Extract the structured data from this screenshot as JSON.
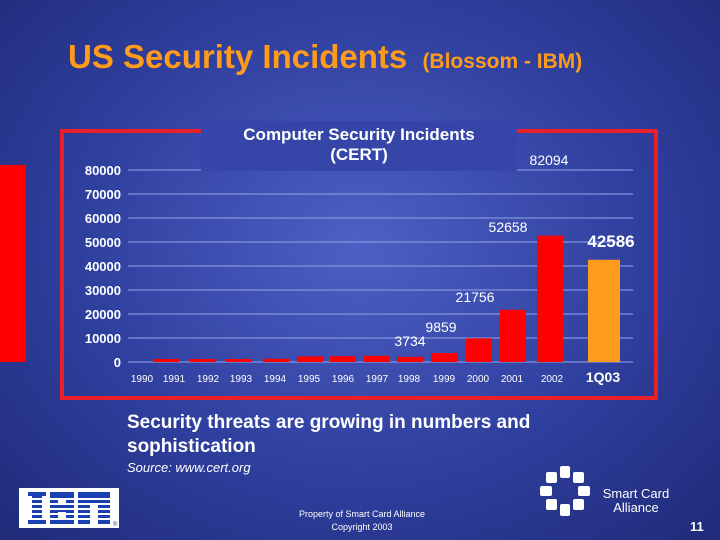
{
  "slide": {
    "title": "US Security Incidents",
    "title_sub": "(Blossom - IBM)",
    "description": "Security threats are growing in numbers and sophistication",
    "source": "Source: www.cert.org",
    "footer_property": "Property of Smart Card Alliance",
    "footer_copyright": "Copyright 2003",
    "sca_name": "Smart Card Alliance",
    "ibm_logo_text": "IBM",
    "page_number": "11"
  },
  "colors": {
    "title": "#ff9b1a",
    "frame": "#e8202a",
    "bar": "#ff0000",
    "highlight_bar": "#ff9b1a",
    "background": "#3545a8"
  },
  "chart_data": {
    "type": "bar",
    "title": "Computer Security Incidents (CERT)",
    "title_lines": [
      "Computer Security Incidents",
      "(CERT)"
    ],
    "categories": [
      "1990",
      "1991",
      "1992",
      "1993",
      "1994",
      "1995",
      "1996",
      "1997",
      "1998",
      "1999",
      "2000",
      "2001",
      "2002",
      "1Q03"
    ],
    "values": [
      252,
      406,
      773,
      1334,
      2340,
      2412,
      2573,
      2134,
      3734,
      9859,
      21756,
      52658,
      82094,
      42586
    ],
    "data_labels": [
      null,
      null,
      null,
      null,
      null,
      null,
      null,
      null,
      "3734",
      "9859",
      "21756",
      "52658",
      "82094",
      "42586"
    ],
    "highlight_category": "1Q03",
    "ylim": [
      0,
      80000
    ],
    "yticks": [
      0,
      10000,
      20000,
      30000,
      40000,
      50000,
      60000,
      70000,
      80000
    ],
    "ytick_labels": [
      "0",
      "10000",
      "20000",
      "30000",
      "40000",
      "50000",
      "60000",
      "70000",
      "80000"
    ],
    "grid": true,
    "legend": "none"
  }
}
